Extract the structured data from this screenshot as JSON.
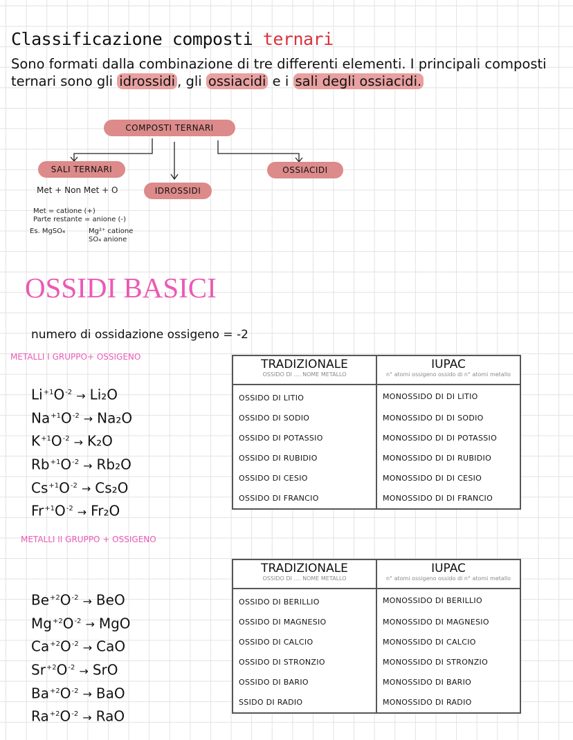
{
  "title": {
    "main": "Classificazione composti",
    "accent": "ternari"
  },
  "intro": {
    "text1": "Sono formati dalla combinazione di tre differenti elementi. I principali composti ternari sono gli ",
    "h1": "idrossidi",
    "text2": ", gli ",
    "h2": "ossiacidi",
    "text3": " e i ",
    "h3": "sali degli ossiacidi."
  },
  "diagram": {
    "root": "COMPOSTI TERNARI",
    "sali": "SALI TERNARI",
    "idrossidi": "IDROSSIDI",
    "ossiacidi": "OSSIACIDI",
    "notes": [
      "Met + Non Met + O",
      "Met = catione (+)",
      "Parte restante = anione (-)",
      "Es. MgSO₄",
      "Mg²⁺ catione",
      "SO₄ anione"
    ]
  },
  "section": {
    "title": "OSSIDI BASICI",
    "ox_rule": "numero di ossidazione ossigeno = -2",
    "group1": "METALLI I GRUPPO+ OSSIGENO",
    "group2": "METALLI II GRUPPO + OSSIGENO"
  },
  "eq1": [
    {
      "a": "Li",
      "oa": "+1",
      "b": "O",
      "ob": "-2",
      "p": "Li₂O"
    },
    {
      "a": "Na",
      "oa": "+1",
      "b": "O",
      "ob": "-2",
      "p": "Na₂O"
    },
    {
      "a": "K",
      "oa": "+1",
      "b": "O",
      "ob": "-2",
      "p": "K₂O"
    },
    {
      "a": "Rb",
      "oa": "+1",
      "b": "O",
      "ob": "-2",
      "p": "Rb₂O"
    },
    {
      "a": "Cs",
      "oa": "+1",
      "b": "O",
      "ob": "-2",
      "p": "Cs₂O"
    },
    {
      "a": "Fr",
      "oa": "+1",
      "b": "O",
      "ob": "-2",
      "p": "Fr₂O"
    }
  ],
  "eq2": [
    {
      "a": "Be",
      "oa": "+2",
      "b": "O",
      "ob": "-2",
      "p": "BeO"
    },
    {
      "a": "Mg",
      "oa": "+2",
      "b": "O",
      "ob": "-2",
      "p": "MgO"
    },
    {
      "a": "Ca",
      "oa": "+2",
      "b": "O",
      "ob": "-2",
      "p": "CaO"
    },
    {
      "a": "Sr",
      "oa": "+2",
      "b": "O",
      "ob": "-2",
      "p": "SrO"
    },
    {
      "a": "Ba",
      "oa": "+2",
      "b": "O",
      "ob": "-2",
      "p": "BaO"
    },
    {
      "a": "Ra",
      "oa": "+2",
      "b": "O",
      "ob": "-2",
      "p": "RaO"
    }
  ],
  "table_header": {
    "trad": "TRADIZIONALE",
    "trad_sub": "OSSIDO DI .... NOME METALLO",
    "iupac": "IUPAC",
    "iupac_sub": "n° atomi ossigeno ossido di n° atomi metallo"
  },
  "table1": [
    [
      "OSSIDO DI LITIO",
      "MONOSSIDO DI DI LITIO"
    ],
    [
      "OSSIDO DI SODIO",
      "MONOSSIDO DI DI SODIO"
    ],
    [
      "OSSIDO DI POTASSIO",
      "MONOSSIDO DI DI POTASSIO"
    ],
    [
      "OSSIDO DI RUBIDIO",
      "MONOSSIDO DI DI RUBIDIO"
    ],
    [
      "OSSIDO DI CESIO",
      "MONOSSIDO DI DI CESIO"
    ],
    [
      "OSSIDO DI FRANCIO",
      "MONOSSIDO DI DI FRANCIO"
    ]
  ],
  "table2": [
    [
      "OSSIDO DI BERILLIO",
      "MONOSSIDO DI BERILLIO"
    ],
    [
      "OSSIDO DI MAGNESIO",
      "MONOSSIDO DI MAGNESIO"
    ],
    [
      "OSSIDO DI CALCIO",
      "MONOSSIDO DI CALCIO"
    ],
    [
      "OSSIDO DI STRONZIO",
      "MONOSSIDO DI STRONZIO"
    ],
    [
      "OSSIDO DI BARIO",
      "MONOSSIDO DI BARIO"
    ],
    [
      "SSIDO DI RADIO",
      "MONOSSIDO DI RADIO"
    ]
  ],
  "colors": {
    "accent_red": "#d8323a",
    "highlight": "#e9a0a0",
    "pill": "#dc8a8a",
    "pink_heading": "#ea5ab5"
  }
}
